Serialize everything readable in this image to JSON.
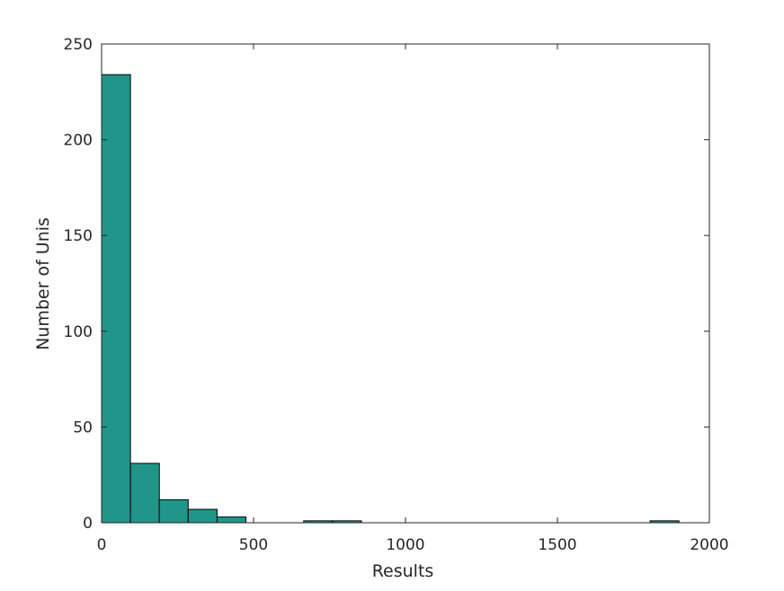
{
  "chart_data": {
    "type": "bar",
    "subtype": "histogram",
    "title": "",
    "xlabel": "Results",
    "ylabel": "Number of Unis",
    "xlim": [
      0,
      2000
    ],
    "ylim": [
      0,
      250
    ],
    "xticks": [
      "0",
      "500",
      "1000",
      "1500",
      "2000"
    ],
    "yticks": [
      "0",
      "50",
      "100",
      "150",
      "200",
      "250"
    ],
    "bin_start": 0,
    "bin_width": 95,
    "counts": [
      234,
      31,
      12,
      7,
      3,
      0,
      0,
      1,
      1,
      0,
      0,
      0,
      0,
      0,
      0,
      0,
      0,
      0,
      0,
      1
    ],
    "grid": false,
    "bar_color": "#21958a",
    "edge_color": "#000000"
  }
}
